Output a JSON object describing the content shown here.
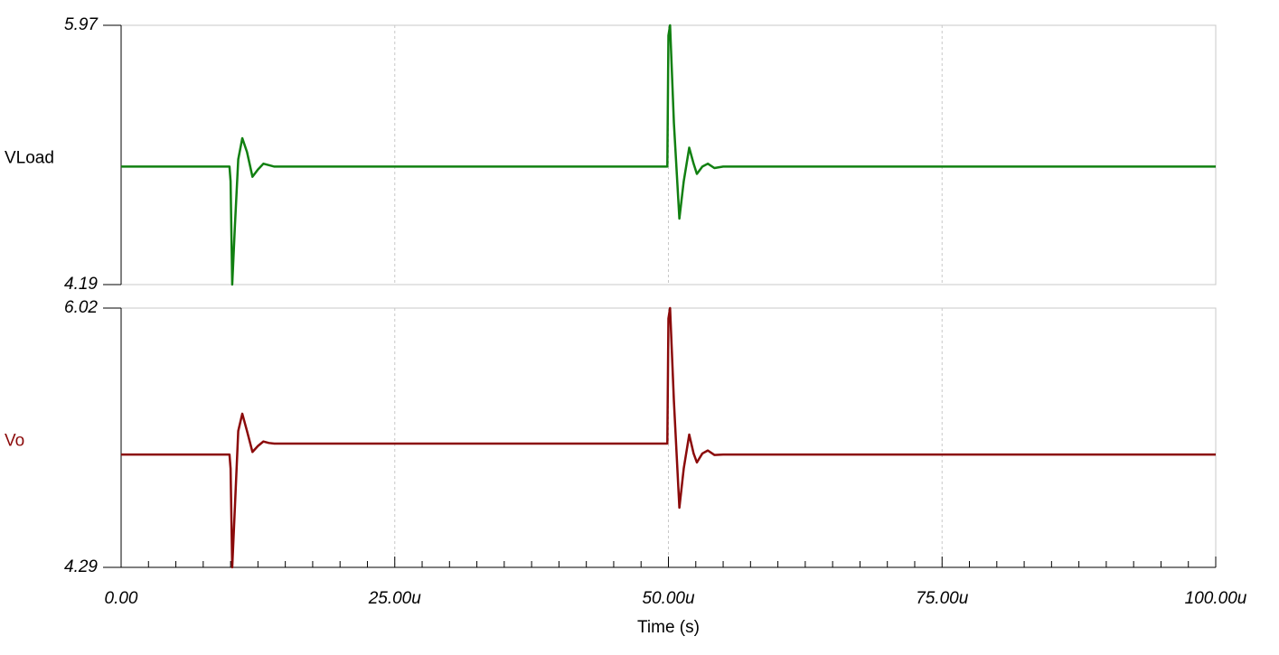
{
  "chart_data": [
    {
      "type": "line",
      "x": [
        0,
        9.9,
        10.0,
        10.15,
        10.4,
        10.7,
        11.07,
        11.5,
        12,
        12.5,
        13,
        13.5,
        14,
        49.9,
        50.0,
        50.15,
        50.5,
        51.0,
        51.4,
        51.9,
        52.3,
        52.6,
        53.1,
        53.6,
        54.2,
        55,
        100
      ],
      "series": [
        {
          "name": "VLoad",
          "color": "#118011",
          "values": [
            5.0,
            5.0,
            4.9,
            4.19,
            4.6,
            5.05,
            5.195,
            5.1,
            4.93,
            4.98,
            5.02,
            5.01,
            5.0,
            5.0,
            5.9,
            5.97,
            5.3,
            4.643,
            4.9,
            5.13,
            5.02,
            4.95,
            5.0,
            5.02,
            4.99,
            5.0,
            5.0
          ]
        }
      ],
      "label_color": "#000000",
      "xlim": [
        0,
        100
      ],
      "xticks": [
        0,
        25,
        50,
        75,
        100
      ],
      "ylim": [
        4.19,
        5.97
      ],
      "yticks": [
        4.19,
        5.97
      ],
      "grid": true
    },
    {
      "type": "line",
      "x": [
        0,
        9.9,
        10.0,
        10.15,
        10.4,
        10.7,
        11.07,
        11.5,
        12,
        12.5,
        13,
        13.5,
        14,
        49.9,
        50.0,
        50.15,
        50.5,
        51.0,
        51.4,
        51.9,
        52.3,
        52.6,
        53.1,
        53.6,
        54.2,
        55,
        100
      ],
      "series": [
        {
          "name": "Vo",
          "color": "#8b0a0a",
          "values": [
            5.043,
            5.043,
            4.95,
            4.29,
            4.7,
            5.2,
            5.315,
            5.2,
            5.06,
            5.1,
            5.13,
            5.12,
            5.116,
            5.116,
            5.95,
            6.02,
            5.4,
            4.688,
            4.95,
            5.176,
            5.05,
            4.99,
            5.05,
            5.07,
            5.04,
            5.043,
            5.043
          ]
        }
      ],
      "label_color": "#8b0a0a",
      "xlabel": "Time (s)",
      "xlim": [
        0,
        100
      ],
      "xticks": [
        {
          "value": 0,
          "label": "0.00"
        },
        {
          "value": 25,
          "label": "25.00u"
        },
        {
          "value": 50,
          "label": "50.00u"
        },
        {
          "value": 75,
          "label": "75.00u"
        },
        {
          "value": 100,
          "label": "100.00u"
        }
      ],
      "xminorticks": [
        2.5,
        5,
        7.5,
        10,
        12.5,
        15,
        17.5,
        20,
        22.5,
        27.5,
        30,
        32.5,
        35,
        37.5,
        40,
        42.5,
        45,
        47.5,
        52.5,
        55,
        57.5,
        60,
        62.5,
        65,
        67.5,
        70,
        72.5,
        77.5,
        80,
        82.5,
        85,
        87.5,
        90,
        92.5,
        95,
        97.5
      ],
      "ylim": [
        4.29,
        6.02
      ],
      "yticks": [
        4.29,
        6.02
      ],
      "grid": true
    }
  ]
}
